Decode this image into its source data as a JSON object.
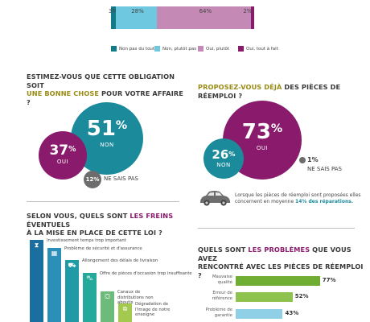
{
  "chart_data": [
    {
      "type": "bar",
      "orientation": "stacked-horizontal",
      "series": [
        {
          "name": "Non pas du tout",
          "value": 3,
          "label": "3%",
          "color": "#127b8a"
        },
        {
          "name": "Non, plutôt pas",
          "value": 28,
          "label": "28%",
          "color": "#6ec8df"
        },
        {
          "name": "Oui, plutôt",
          "value": 64,
          "label": "64%",
          "color": "#c48ab5"
        },
        {
          "name": "Oui, tout à fait",
          "value": 2,
          "label": "2%",
          "color": "#8a1a6b"
        }
      ]
    },
    {
      "type": "bubble",
      "title_parts": [
        "ESTIMEZ-VOUS QUE CETTE OBLIGATION SOIT",
        "UNE BONNE CHOSE",
        " POUR VOTRE AFFAIRE ?"
      ],
      "items": [
        {
          "name": "NON",
          "value": 51,
          "label": "51",
          "color": "#1b8a9a"
        },
        {
          "name": "OUI",
          "value": 37,
          "label": "37",
          "color": "#8a1a6b"
        },
        {
          "name": "NE SAIS PAS",
          "value": 12,
          "label": "12%",
          "color": "#6d6d6d"
        }
      ]
    },
    {
      "type": "bubble",
      "title_parts": [
        "PROPOSEZ-VOUS DÉJÀ",
        " DES PIÈCES DE RÉEMPLOI ?"
      ],
      "items": [
        {
          "name": "OUI",
          "value": 73,
          "label": "73",
          "color": "#8a1a6b"
        },
        {
          "name": "NON",
          "value": 26,
          "label": "26",
          "color": "#1b8a9a"
        },
        {
          "name": "NE SAIS PAS",
          "value": 1,
          "label": "1%",
          "color": "#6d6d6d"
        }
      ],
      "note": "Lorsque les pièces de réemploi sont proposées elles concernent en moyenne ",
      "note_highlight": "14% des réparations."
    },
    {
      "type": "bar",
      "title_parts": [
        "SELON VOUS, QUELS SONT ",
        "LES FREINS",
        " ÉVENTUELS",
        "À LA MISE EN PLACE DE CETTE LOI ?"
      ],
      "categories": [
        "Investissement temps trop important",
        "Problème de sécurité et d'assurance",
        "Allongement des délais de livraison",
        "Offre de pièces d'occasion trop insuffisante",
        "Canaux de distributions non aboutis",
        "Dégradation de l'image de notre enseigne"
      ],
      "bar_colors": [
        "#1b6fa0",
        "#2b8fb8",
        "#1f9aa6",
        "#25a99a",
        "#6dbb7a",
        "#a3c94e"
      ],
      "icons": [
        "hourglass-icon",
        "calendar-icon",
        "truck-icon",
        "car-icon",
        "cart-icon",
        "tag-icon"
      ]
    },
    {
      "type": "bar",
      "orientation": "horizontal",
      "title_parts": [
        "QUELS SONT ",
        "LES PROBLÈMES",
        " QUE VOUS AVEZ",
        "RENCONTRÉ AVEC LES PIÈCES DE RÉEMPLOI ?"
      ],
      "categories": [
        "Mauvaise qualité",
        "Erreur de référence",
        "Problème de garantie"
      ],
      "values": [
        77,
        52,
        43
      ],
      "labels": [
        "77%",
        "52%",
        "43%"
      ],
      "colors": [
        "#6fae33",
        "#8ec24f",
        "#8fd0e6"
      ]
    }
  ]
}
